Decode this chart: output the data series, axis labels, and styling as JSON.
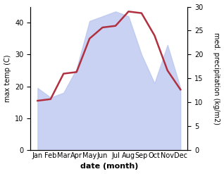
{
  "months": [
    "Jan",
    "Feb",
    "Mar",
    "Apr",
    "May",
    "Jun",
    "Jul",
    "Aug",
    "Sep",
    "Oct",
    "Nov",
    "Dec"
  ],
  "temperature": [
    15.5,
    16.0,
    24.0,
    24.5,
    35.0,
    38.5,
    39.0,
    43.5,
    43.0,
    36.0,
    25.0,
    19.0
  ],
  "precipitation": [
    13,
    11,
    12,
    17,
    27,
    28,
    29,
    28,
    20,
    14,
    22,
    13
  ],
  "temp_color": "#b03040",
  "precip_fill_color": "#b8c4ef",
  "precip_alpha": 0.75,
  "xlabel": "date (month)",
  "ylabel_left": "max temp (C)",
  "ylabel_right": "med. precipitation (kg/m2)",
  "ylim_left": [
    0,
    45
  ],
  "ylim_right": [
    0,
    30
  ],
  "yticks_left": [
    0,
    10,
    20,
    30,
    40
  ],
  "yticks_right": [
    0,
    5,
    10,
    15,
    20,
    25,
    30
  ],
  "background_color": "#ffffff",
  "temp_linewidth": 1.8,
  "label_fontsize": 7,
  "tick_fontsize": 7,
  "xlabel_fontsize": 8
}
